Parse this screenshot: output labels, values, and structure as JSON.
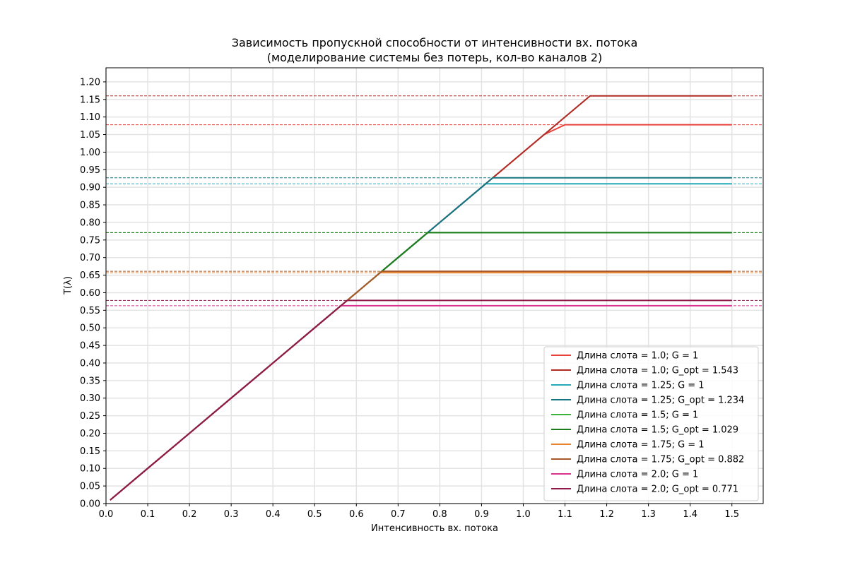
{
  "chart_data": {
    "type": "line",
    "title": "Зависимость пропускной способности от интенсивности вх. потока",
    "subtitle": "(моделирование системы без потерь, кол-во каналов 2)",
    "xlabel": "Интенсивность вх. потока",
    "ylabel": "T(λ)",
    "xlim": [
      0.0,
      1.575
    ],
    "ylim": [
      0.0,
      1.24
    ],
    "x_ticks": [
      "0.0",
      "0.1",
      "0.2",
      "0.3",
      "0.4",
      "0.5",
      "0.6",
      "0.7",
      "0.8",
      "0.9",
      "1.0",
      "1.1",
      "1.2",
      "1.3",
      "1.4",
      "1.5"
    ],
    "y_ticks": [
      "0.00",
      "0.05",
      "0.10",
      "0.15",
      "0.20",
      "0.25",
      "0.30",
      "0.35",
      "0.40",
      "0.45",
      "0.50",
      "0.55",
      "0.60",
      "0.65",
      "0.70",
      "0.75",
      "0.80",
      "0.85",
      "0.90",
      "0.95",
      "1.00",
      "1.05",
      "1.10",
      "1.15",
      "1.20"
    ],
    "grid": true,
    "legend_position": "lower-right",
    "series": [
      {
        "name": "Длина слота = 1.0; G = 1",
        "color": "#e8413a",
        "plateau": 1.078,
        "values": [
          [
            0.01,
            0.01
          ],
          [
            0.1,
            0.1
          ],
          [
            0.2,
            0.2
          ],
          [
            0.3,
            0.3
          ],
          [
            0.4,
            0.4
          ],
          [
            0.5,
            0.5
          ],
          [
            0.6,
            0.6
          ],
          [
            0.7,
            0.7
          ],
          [
            0.8,
            0.8
          ],
          [
            0.9,
            0.9
          ],
          [
            1.0,
            1.0
          ],
          [
            1.05,
            1.05
          ],
          [
            1.1,
            1.078
          ],
          [
            1.2,
            1.078
          ],
          [
            1.3,
            1.078
          ],
          [
            1.4,
            1.078
          ],
          [
            1.5,
            1.078
          ]
        ]
      },
      {
        "name": "Длина слота = 1.0; G_opt = 1.543",
        "color": "#b22a24",
        "plateau": 1.16,
        "values": [
          [
            0.01,
            0.01
          ],
          [
            0.1,
            0.1
          ],
          [
            0.2,
            0.2
          ],
          [
            0.3,
            0.3
          ],
          [
            0.4,
            0.4
          ],
          [
            0.5,
            0.5
          ],
          [
            0.6,
            0.6
          ],
          [
            0.7,
            0.7
          ],
          [
            0.8,
            0.8
          ],
          [
            0.9,
            0.9
          ],
          [
            1.0,
            1.0
          ],
          [
            1.1,
            1.1
          ],
          [
            1.16,
            1.16
          ],
          [
            1.2,
            1.16
          ],
          [
            1.3,
            1.16
          ],
          [
            1.4,
            1.16
          ],
          [
            1.5,
            1.16
          ]
        ]
      },
      {
        "name": "Длина слота = 1.25; G = 1",
        "color": "#26a9b8",
        "plateau": 0.91,
        "values": [
          [
            0.01,
            0.01
          ],
          [
            0.1,
            0.1
          ],
          [
            0.2,
            0.2
          ],
          [
            0.3,
            0.3
          ],
          [
            0.4,
            0.4
          ],
          [
            0.5,
            0.5
          ],
          [
            0.6,
            0.6
          ],
          [
            0.7,
            0.7
          ],
          [
            0.8,
            0.8
          ],
          [
            0.9,
            0.9
          ],
          [
            0.91,
            0.91
          ],
          [
            1.0,
            0.91
          ],
          [
            1.1,
            0.91
          ],
          [
            1.2,
            0.91
          ],
          [
            1.3,
            0.91
          ],
          [
            1.4,
            0.91
          ],
          [
            1.5,
            0.91
          ]
        ]
      },
      {
        "name": "Длина слота = 1.25; G_opt = 1.234",
        "color": "#167583",
        "plateau": 0.927,
        "values": [
          [
            0.01,
            0.01
          ],
          [
            0.1,
            0.1
          ],
          [
            0.2,
            0.2
          ],
          [
            0.3,
            0.3
          ],
          [
            0.4,
            0.4
          ],
          [
            0.5,
            0.5
          ],
          [
            0.6,
            0.6
          ],
          [
            0.7,
            0.7
          ],
          [
            0.8,
            0.8
          ],
          [
            0.9,
            0.9
          ],
          [
            0.927,
            0.927
          ],
          [
            1.0,
            0.927
          ],
          [
            1.1,
            0.927
          ],
          [
            1.2,
            0.927
          ],
          [
            1.3,
            0.927
          ],
          [
            1.4,
            0.927
          ],
          [
            1.5,
            0.927
          ]
        ]
      },
      {
        "name": "Длина слота = 1.5; G = 1",
        "color": "#3cb43c",
        "plateau": 0.771,
        "values": [
          [
            0.01,
            0.01
          ],
          [
            0.1,
            0.1
          ],
          [
            0.2,
            0.2
          ],
          [
            0.3,
            0.3
          ],
          [
            0.4,
            0.4
          ],
          [
            0.5,
            0.5
          ],
          [
            0.6,
            0.6
          ],
          [
            0.7,
            0.7
          ],
          [
            0.771,
            0.771
          ],
          [
            0.8,
            0.771
          ],
          [
            0.9,
            0.771
          ],
          [
            1.0,
            0.771
          ],
          [
            1.1,
            0.771
          ],
          [
            1.2,
            0.771
          ],
          [
            1.3,
            0.771
          ],
          [
            1.4,
            0.771
          ],
          [
            1.5,
            0.771
          ]
        ]
      },
      {
        "name": "Длина слота = 1.5; G_opt = 1.029",
        "color": "#1c7d1c",
        "plateau": 0.771,
        "values": [
          [
            0.01,
            0.01
          ],
          [
            0.1,
            0.1
          ],
          [
            0.2,
            0.2
          ],
          [
            0.3,
            0.3
          ],
          [
            0.4,
            0.4
          ],
          [
            0.5,
            0.5
          ],
          [
            0.6,
            0.6
          ],
          [
            0.7,
            0.7
          ],
          [
            0.771,
            0.771
          ],
          [
            0.8,
            0.771
          ],
          [
            0.9,
            0.771
          ],
          [
            1.0,
            0.771
          ],
          [
            1.1,
            0.771
          ],
          [
            1.2,
            0.771
          ],
          [
            1.3,
            0.771
          ],
          [
            1.4,
            0.771
          ],
          [
            1.5,
            0.771
          ]
        ]
      },
      {
        "name": "Длина слота = 1.75; G = 1",
        "color": "#e8842f",
        "plateau": 0.657,
        "values": [
          [
            0.01,
            0.01
          ],
          [
            0.1,
            0.1
          ],
          [
            0.2,
            0.2
          ],
          [
            0.3,
            0.3
          ],
          [
            0.4,
            0.4
          ],
          [
            0.5,
            0.5
          ],
          [
            0.6,
            0.6
          ],
          [
            0.657,
            0.657
          ],
          [
            0.7,
            0.657
          ],
          [
            0.8,
            0.657
          ],
          [
            0.9,
            0.657
          ],
          [
            1.0,
            0.657
          ],
          [
            1.1,
            0.657
          ],
          [
            1.2,
            0.657
          ],
          [
            1.3,
            0.657
          ],
          [
            1.4,
            0.657
          ],
          [
            1.5,
            0.657
          ]
        ]
      },
      {
        "name": "Длина слота = 1.75; G_opt = 0.882",
        "color": "#a8592a",
        "plateau": 0.661,
        "values": [
          [
            0.01,
            0.01
          ],
          [
            0.1,
            0.1
          ],
          [
            0.2,
            0.2
          ],
          [
            0.3,
            0.3
          ],
          [
            0.4,
            0.4
          ],
          [
            0.5,
            0.5
          ],
          [
            0.6,
            0.6
          ],
          [
            0.661,
            0.661
          ],
          [
            0.7,
            0.661
          ],
          [
            0.8,
            0.661
          ],
          [
            0.9,
            0.661
          ],
          [
            1.0,
            0.661
          ],
          [
            1.1,
            0.661
          ],
          [
            1.2,
            0.661
          ],
          [
            1.3,
            0.661
          ],
          [
            1.4,
            0.661
          ],
          [
            1.5,
            0.661
          ]
        ]
      },
      {
        "name": "Длина слота = 2.0; G = 1",
        "color": "#d9338f",
        "plateau": 0.563,
        "values": [
          [
            0.01,
            0.01
          ],
          [
            0.1,
            0.1
          ],
          [
            0.2,
            0.2
          ],
          [
            0.3,
            0.3
          ],
          [
            0.4,
            0.4
          ],
          [
            0.5,
            0.5
          ],
          [
            0.563,
            0.563
          ],
          [
            0.6,
            0.563
          ],
          [
            0.7,
            0.563
          ],
          [
            0.8,
            0.563
          ],
          [
            0.9,
            0.563
          ],
          [
            1.0,
            0.563
          ],
          [
            1.1,
            0.563
          ],
          [
            1.2,
            0.563
          ],
          [
            1.3,
            0.563
          ],
          [
            1.4,
            0.563
          ],
          [
            1.5,
            0.563
          ]
        ]
      },
      {
        "name": "Длина слота = 2.0; G_opt = 0.771",
        "color": "#8e1a4a",
        "plateau": 0.578,
        "values": [
          [
            0.01,
            0.01
          ],
          [
            0.1,
            0.1
          ],
          [
            0.2,
            0.2
          ],
          [
            0.3,
            0.3
          ],
          [
            0.4,
            0.4
          ],
          [
            0.5,
            0.5
          ],
          [
            0.578,
            0.578
          ],
          [
            0.6,
            0.578
          ],
          [
            0.7,
            0.578
          ],
          [
            0.8,
            0.578
          ],
          [
            0.9,
            0.578
          ],
          [
            1.0,
            0.578
          ],
          [
            1.1,
            0.578
          ],
          [
            1.2,
            0.578
          ],
          [
            1.3,
            0.578
          ],
          [
            1.4,
            0.578
          ],
          [
            1.5,
            0.578
          ]
        ]
      }
    ]
  }
}
